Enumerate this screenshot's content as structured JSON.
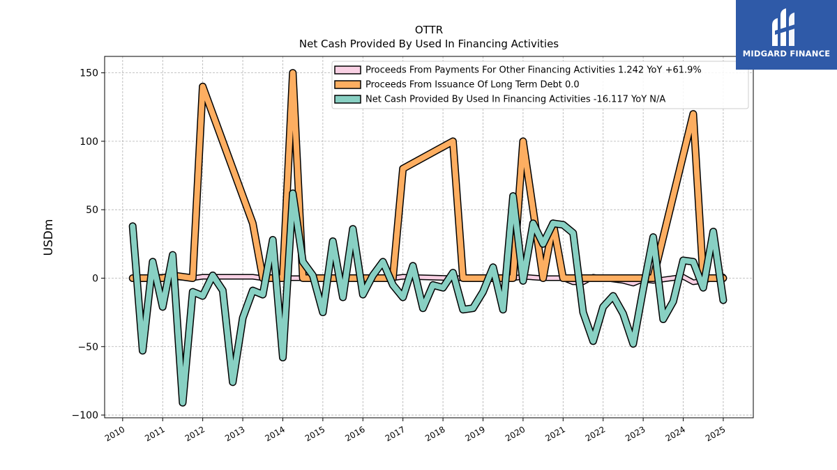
{
  "brand": {
    "name": "MIDGARD FINANCE",
    "logo_icon": "midgard-logo-icon",
    "color": "#2f5aa8"
  },
  "chart_data": {
    "type": "line",
    "title": "OTTR",
    "subtitle": "Net Cash Provided By Used In Financing Activities",
    "ylabel": "USDm",
    "xlabel": "",
    "xlim": [
      2009.55,
      2025.75
    ],
    "ylim": [
      -102,
      162
    ],
    "yticks": [
      150,
      100,
      50,
      0,
      -50,
      -100
    ],
    "ytick_labels": [
      "150",
      "100",
      "50",
      "0",
      "−50",
      "−100"
    ],
    "xticks": [
      2010,
      2011,
      2012,
      2013,
      2014,
      2015,
      2016,
      2017,
      2018,
      2019,
      2020,
      2021,
      2022,
      2023,
      2024,
      2025
    ],
    "xtick_labels": [
      "2010",
      "2011",
      "2012",
      "2013",
      "2014",
      "2015",
      "2016",
      "2017",
      "2018",
      "2019",
      "2020",
      "2021",
      "2022",
      "2023",
      "2024",
      "2025"
    ],
    "grid": true,
    "legend_position": "top-right",
    "series": [
      {
        "name": "Proceeds From Payments For Other Financing Activities",
        "legend_label": "Proceeds From Payments For Other Financing Activities  1.242 YoY +61.9%",
        "color": "#f9d1e4",
        "x": [
          2010.25,
          2011.0,
          2011.75,
          2012.0,
          2013.25,
          2013.5,
          2014.0,
          2014.25,
          2014.5,
          2015.0,
          2016.0,
          2016.75,
          2017.0,
          2018.25,
          2018.5,
          2019.0,
          2019.75,
          2020.0,
          2020.5,
          2020.75,
          2021.0,
          2021.25,
          2021.5,
          2021.75,
          2022.0,
          2022.5,
          2022.75,
          2023.0,
          2023.25,
          2023.5,
          2024.0,
          2024.25,
          2024.5,
          2024.75,
          2025.0
        ],
        "values": [
          0,
          1,
          0,
          1,
          1,
          0,
          0,
          0,
          0,
          0,
          0,
          0,
          1,
          0,
          0,
          0,
          0,
          1,
          0,
          0,
          0,
          -3,
          -3,
          1,
          0,
          -2,
          -4,
          -1,
          -2,
          -1,
          1,
          -3,
          -2,
          0,
          1.2
        ]
      },
      {
        "name": "Proceeds From Issuance Of Long Term Debt",
        "legend_label": "Proceeds From Issuance Of Long Term Debt  0.0",
        "color": "#fdae61",
        "x": [
          2010.25,
          2011.0,
          2011.25,
          2011.75,
          2012.0,
          2013.25,
          2013.5,
          2014.0,
          2014.25,
          2014.5,
          2015.0,
          2016.0,
          2016.75,
          2017.0,
          2018.25,
          2018.5,
          2019.0,
          2019.75,
          2020.0,
          2020.5,
          2020.75,
          2021.0,
          2022.0,
          2023.0,
          2023.25,
          2024.25,
          2024.5,
          2025.0
        ],
        "values": [
          0,
          0,
          2,
          0,
          140,
          40,
          0,
          0,
          150,
          0,
          0,
          0,
          0,
          80,
          100,
          0,
          0,
          0,
          100,
          0,
          40,
          0,
          0,
          0,
          0,
          120,
          0,
          0
        ]
      },
      {
        "name": "Net Cash Provided By Used In Financing Activities",
        "legend_label": "Net Cash Provided By Used In Financing Activities  -16.117 YoY N/A",
        "color": "#88d0c3",
        "x": [
          2010.25,
          2010.5,
          2010.75,
          2011.0,
          2011.25,
          2011.5,
          2011.75,
          2012.0,
          2012.25,
          2012.5,
          2012.75,
          2013.0,
          2013.25,
          2013.5,
          2013.75,
          2014.0,
          2014.25,
          2014.5,
          2014.75,
          2015.0,
          2015.25,
          2015.5,
          2015.75,
          2016.0,
          2016.25,
          2016.5,
          2016.75,
          2017.0,
          2017.25,
          2017.5,
          2017.75,
          2018.0,
          2018.25,
          2018.5,
          2018.75,
          2019.0,
          2019.25,
          2019.5,
          2019.75,
          2020.0,
          2020.25,
          2020.5,
          2020.75,
          2021.0,
          2021.25,
          2021.5,
          2021.75,
          2022.0,
          2022.25,
          2022.5,
          2022.75,
          2023.0,
          2023.25,
          2023.5,
          2023.75,
          2024.0,
          2024.25,
          2024.5,
          2024.75,
          2025.0
        ],
        "values": [
          38,
          -53,
          12,
          -21,
          17,
          -91,
          -10,
          -13,
          2,
          -9,
          -76,
          -29,
          -9,
          -12,
          28,
          -58,
          62,
          12,
          2,
          -25,
          27,
          -14,
          36,
          -12,
          2,
          12,
          -5,
          -14,
          9,
          -22,
          -5,
          -7,
          4,
          -23,
          -22,
          -10,
          8,
          -23,
          60,
          -2,
          40,
          25,
          40,
          39,
          33,
          -25,
          -46,
          -21,
          -13,
          -26,
          -48,
          -8,
          30,
          -30,
          -17,
          13,
          12,
          -7,
          34,
          -16.1
        ]
      }
    ]
  }
}
